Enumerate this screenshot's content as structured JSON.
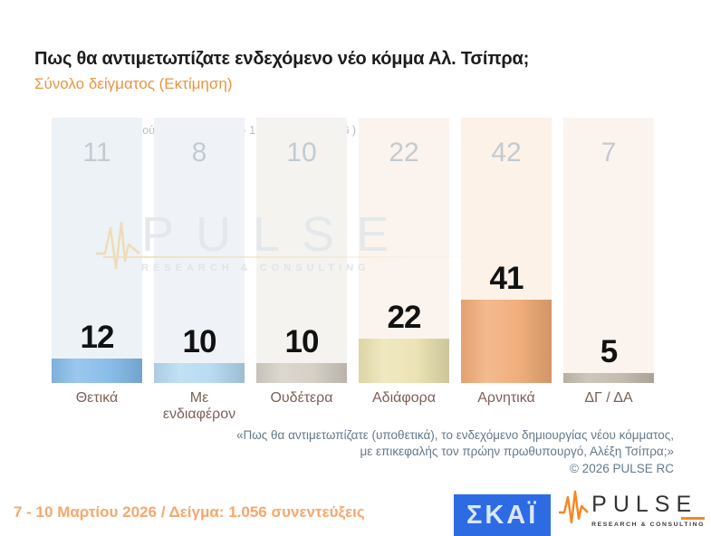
{
  "header": {
    "title": "Πως θα αντιμετωπίζατε ενδεχόμενο νέο κόμμα Αλ. Τσίπρα;",
    "subtitle": "Σύνολο δείγματος  (Εκτίμηση)"
  },
  "chart_data": {
    "type": "bar",
    "title": "Πως θα αντιμετωπίζατε ενδεχόμενο νέο κόμμα Αλ. Τσίπρα;",
    "subtitle": "Σύνολο δείγματος (Εκτίμηση)",
    "unit": "%",
    "categories": [
      "Θετικά",
      "Με ενδιαφέρον",
      "Ουδέτερα",
      "Αδιάφορα",
      "Αρνητικά",
      "ΔΓ / ΔΑ"
    ],
    "values": [
      12,
      10,
      10,
      22,
      41,
      5
    ],
    "previous": {
      "label": "Προηγούμενη έρευνα ( 16 - 19 Ιανουαρίου 2026 )",
      "values": [
        11,
        8,
        10,
        22,
        42,
        7
      ]
    },
    "bar_colors": [
      "#84bbe9",
      "#b6d9f2",
      "#d4cec4",
      "#ebe3b2",
      "#f0ab76",
      "#c2baac"
    ],
    "band_colors": [
      "#edf2f7",
      "#eff3f8",
      "#f4f3f0",
      "#fbf4ee",
      "#fcf2e8",
      "#fbf4ee"
    ],
    "value_label_color": "#121212",
    "previous_value_color": "#c3cad2",
    "layout": {
      "grid": false,
      "axes": false,
      "data_labels": true,
      "ylim": [
        0,
        100
      ]
    }
  },
  "watermark": {
    "name": "PULSE",
    "tagline": "RESEARCH & CONSULTING"
  },
  "footnote": {
    "line1": "«Πως θα αντιμετωπίζατε (υποθετικά), το ενδεχόμενο δημιουργίας νέου κόμματος,",
    "line2": "με επικεφαλής τον πρώην πρωθυπουργό, Αλέξη Τσίπρα;»",
    "copyright": "©  2026  PULSE RC"
  },
  "footer": {
    "survey_info": "7 - 10  Μαρτίου 2026  /  Δείγμα:  1.056 συνεντεύξεις",
    "skai_logo": "ΣΚΑΪ",
    "pulse_logo": "PULSE",
    "pulse_tagline": "RESEARCH & CONSULTING"
  }
}
